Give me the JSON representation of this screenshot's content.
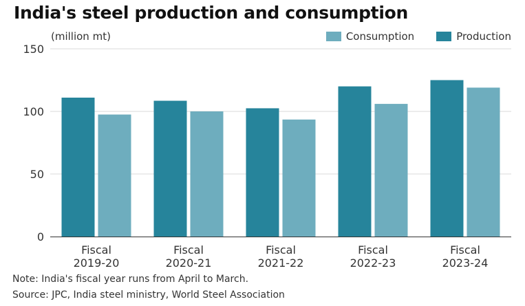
{
  "header": {
    "title": "India's steel production and consumption",
    "unit": "(million mt)"
  },
  "legend": {
    "consumption_label": "Consumption",
    "production_label": "Production"
  },
  "colors": {
    "production": "#26849b",
    "consumption": "#6eadbe",
    "grid": "#d9d9d9",
    "axis": "#333333"
  },
  "chart_data": {
    "type": "bar",
    "title": "India's steel production and consumption",
    "ylabel": "(million mt)",
    "xlabel": "",
    "ylim": [
      0,
      150
    ],
    "yticks": [
      "0",
      "50",
      "100",
      "150"
    ],
    "categories": [
      [
        "Fiscal",
        "2019-20"
      ],
      [
        "Fiscal",
        "2020-21"
      ],
      [
        "Fiscal",
        "2021-22"
      ],
      [
        "Fiscal",
        "2022-23"
      ],
      [
        "Fiscal",
        "2023-24"
      ]
    ],
    "series": [
      {
        "name": "Production",
        "values": [
          111,
          108.5,
          102.5,
          120,
          125
        ]
      },
      {
        "name": "Consumption",
        "values": [
          97.5,
          100,
          93.5,
          106,
          119
        ]
      }
    ],
    "legend_position": "top-right",
    "grid": true
  },
  "footer": {
    "note": "Note: India's fiscal year runs from April to March.",
    "source": "Source: JPC, India steel ministry, World Steel Association"
  }
}
